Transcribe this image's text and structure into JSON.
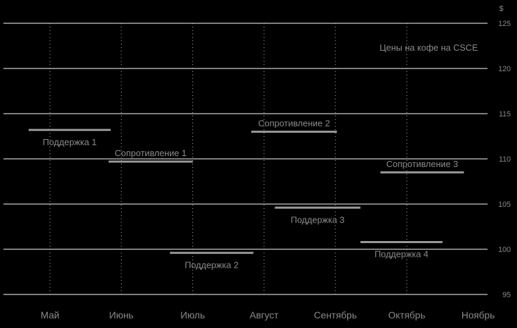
{
  "chart_data": {
    "type": "line",
    "title": "Цены на кофе на CSCE",
    "unit": "$",
    "ylim": [
      95,
      125
    ],
    "yticks": [
      95,
      100,
      105,
      110,
      115,
      120,
      125
    ],
    "x_categories": [
      "Май",
      "Июнь",
      "Июль",
      "Август",
      "Сентябрь",
      "Октябрь",
      "Ноябрь"
    ],
    "grid": {
      "horizontal": true,
      "vertical_dotted": true
    },
    "levels": [
      {
        "label": "Поддержка 1",
        "y": 113.2,
        "x_start": 0.2,
        "x_end": 1.35,
        "label_pos": "below"
      },
      {
        "label": "Сопротивление 1",
        "y": 109.7,
        "x_start": 1.32,
        "x_end": 2.5,
        "label_pos": "above"
      },
      {
        "label": "Поддержка 2",
        "y": 99.6,
        "x_start": 2.18,
        "x_end": 3.35,
        "label_pos": "below"
      },
      {
        "label": "Сопротивление 2",
        "y": 113.0,
        "x_start": 3.32,
        "x_end": 4.52,
        "label_pos": "above"
      },
      {
        "label": "Поддержка 3",
        "y": 104.6,
        "x_start": 3.65,
        "x_end": 4.85,
        "label_pos": "below"
      },
      {
        "label": "Поддержка 4",
        "y": 100.8,
        "x_start": 4.85,
        "x_end": 6.0,
        "label_pos": "below"
      },
      {
        "label": "Сопротивление 3",
        "y": 108.5,
        "x_start": 5.13,
        "x_end": 6.3,
        "label_pos": "above"
      }
    ],
    "colors": {
      "background": "#000000",
      "grid": "#ffffff",
      "level": "#9a9a9a",
      "text": "#8a8a8a"
    }
  }
}
